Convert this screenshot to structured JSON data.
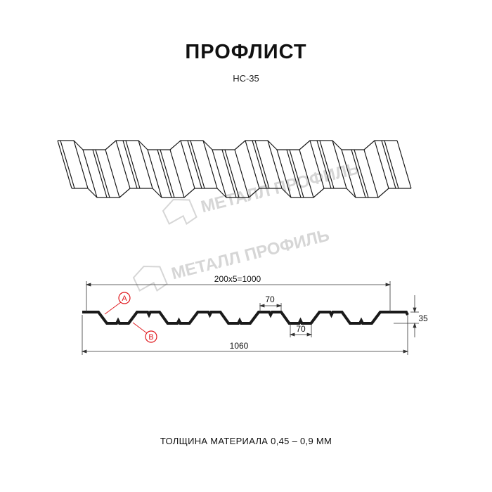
{
  "header": {
    "title": "ПРОФЛИСТ",
    "subtitle": "НС-35"
  },
  "watermark": {
    "text": "МЕТАЛЛ ПРОФИЛЬ",
    "color": "#d6d6d6"
  },
  "drawing": {
    "dimensions": {
      "pitch_total": "200x5=1000",
      "top_flange": "70",
      "bottom_flange": "70",
      "height": "35",
      "overall_width": "1060"
    },
    "markers": [
      {
        "label": "A"
      },
      {
        "label": "B"
      }
    ],
    "marker_color": "#e0161b",
    "profile_color": "#1a1a1a"
  },
  "footer": {
    "text": "ТОЛЩИНА МАТЕРИАЛА 0,45 – 0,9 ММ"
  }
}
